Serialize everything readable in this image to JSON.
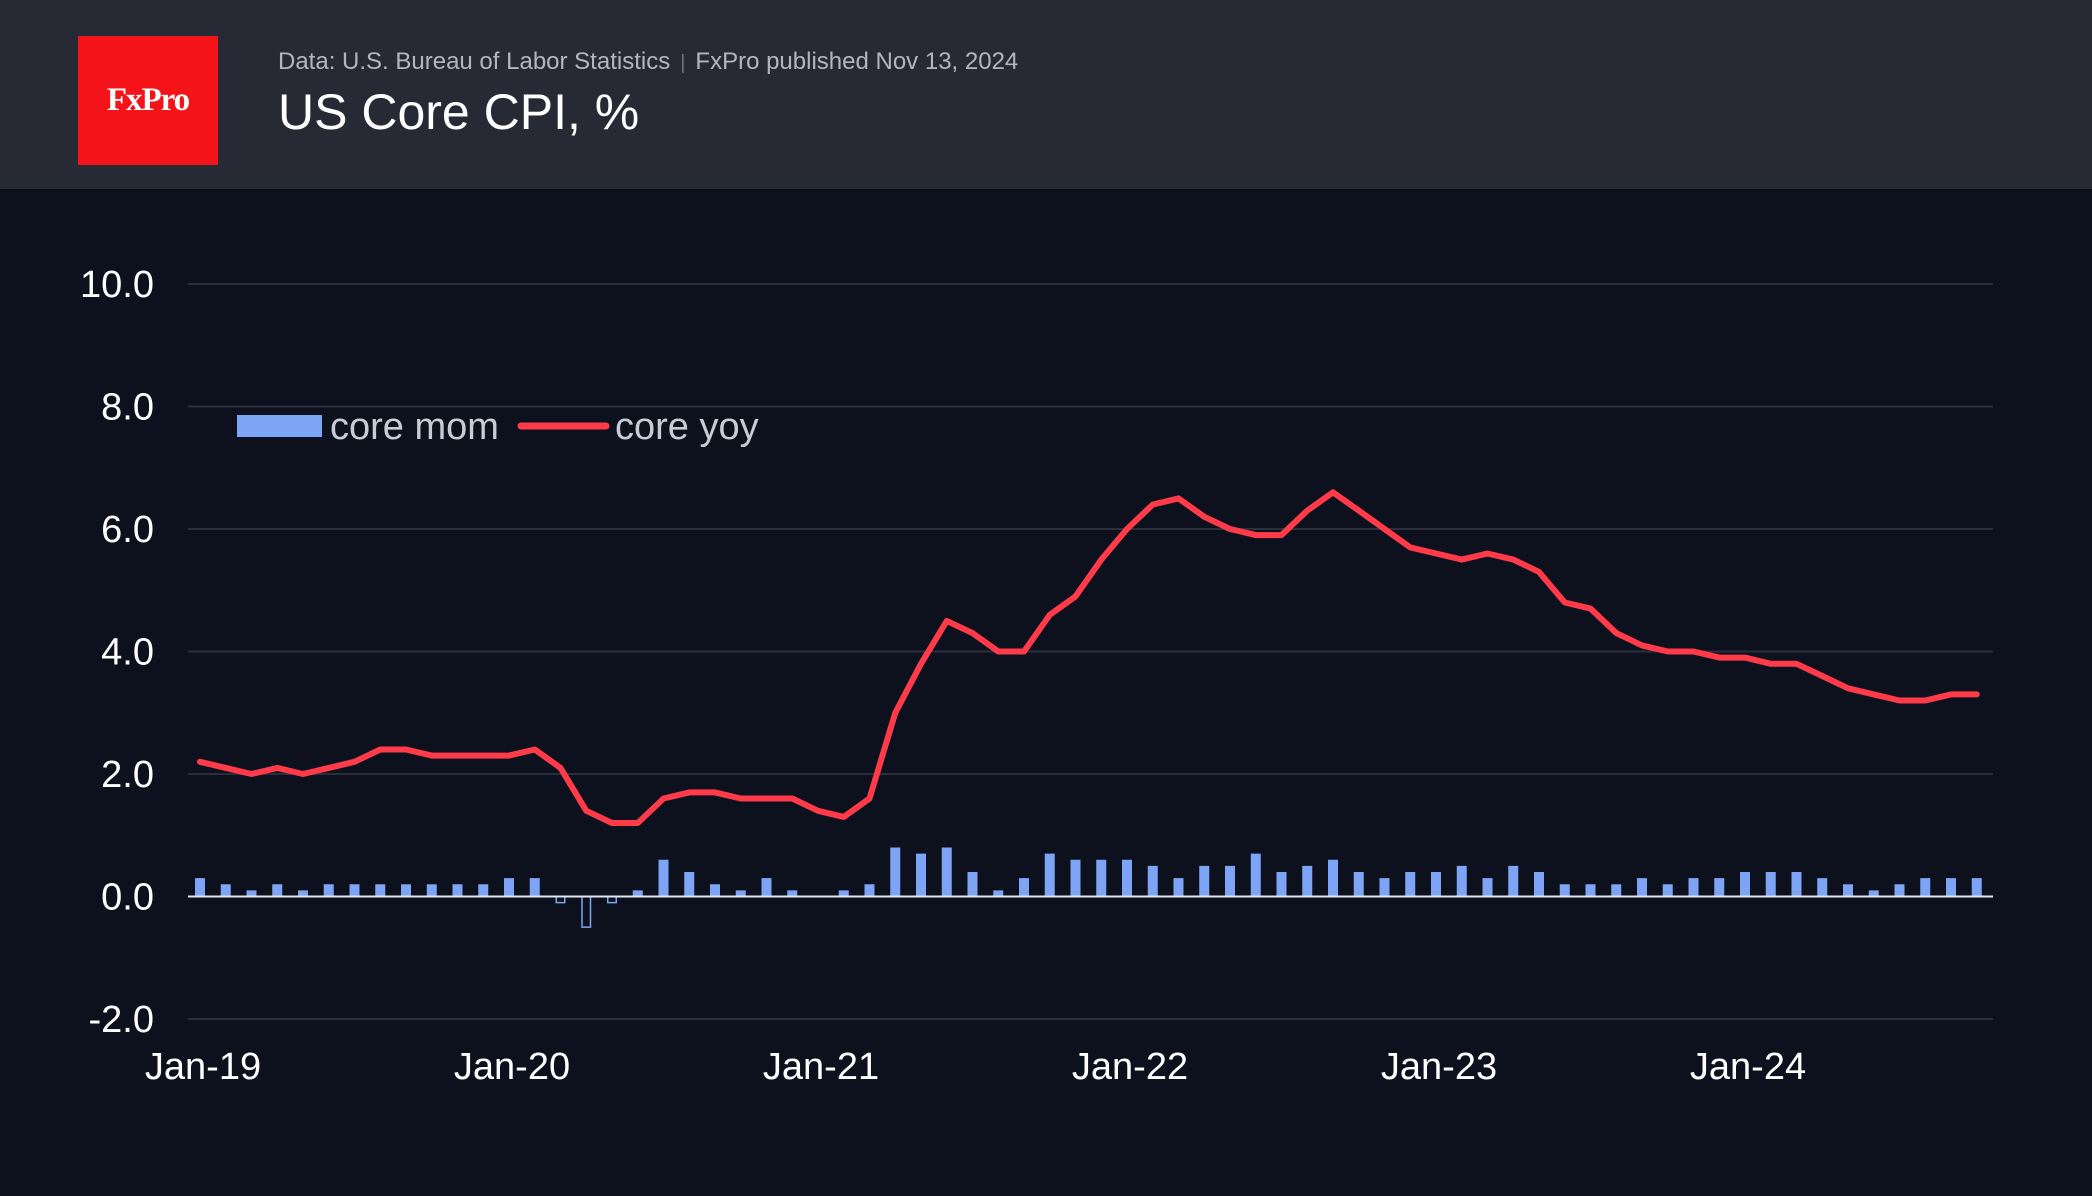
{
  "header": {
    "logo_text": "FxPro",
    "source": "Data: U.S. Bureau of Labor Statistics",
    "separator": "|",
    "published": "FxPro published Nov 13, 2024",
    "title": "US Core CPI, %"
  },
  "colors": {
    "background": "#0c111d",
    "header_bg": "#272a35",
    "logo_red": "#f5131a",
    "line": "#ff3b4a",
    "bars": "#7ea4f5",
    "grid": "#2a2f3b",
    "text": "#ffffff"
  },
  "chart_data": {
    "type": "bar+line",
    "title": "US Core CPI, %",
    "xlabel": "",
    "ylabel": "",
    "ylim": [
      -2,
      10
    ],
    "yticks": [
      "10.0",
      "8.0",
      "6.0",
      "4.0",
      "2.0",
      "0.0",
      "-2.0"
    ],
    "x_tick_labels": [
      "Jan-19",
      "Jan-20",
      "Jan-21",
      "Jan-22",
      "Jan-23",
      "Jan-24"
    ],
    "legend": {
      "position": "top-left",
      "entries": [
        {
          "name": "core mom",
          "kind": "bar"
        },
        {
          "name": "core yoy",
          "kind": "line"
        }
      ]
    },
    "start_month": "Jan-2019",
    "series": [
      {
        "name": "core mom",
        "type": "bar",
        "values": [
          0.3,
          0.2,
          0.1,
          0.2,
          0.1,
          0.2,
          0.2,
          0.2,
          0.2,
          0.2,
          0.2,
          0.2,
          0.3,
          0.3,
          -0.1,
          -0.5,
          -0.1,
          0.1,
          0.6,
          0.4,
          0.2,
          0.1,
          0.3,
          0.1,
          0.0,
          0.1,
          0.2,
          0.8,
          0.7,
          0.8,
          0.4,
          0.1,
          0.3,
          0.7,
          0.6,
          0.6,
          0.6,
          0.5,
          0.3,
          0.5,
          0.5,
          0.7,
          0.4,
          0.5,
          0.6,
          0.4,
          0.3,
          0.4,
          0.4,
          0.5,
          0.3,
          0.5,
          0.4,
          0.2,
          0.2,
          0.2,
          0.3,
          0.2,
          0.3,
          0.3,
          0.4,
          0.4,
          0.4,
          0.3,
          0.2,
          0.1,
          0.2,
          0.3,
          0.3,
          0.3
        ]
      },
      {
        "name": "core yoy",
        "type": "line",
        "values": [
          2.2,
          2.1,
          2.0,
          2.1,
          2.0,
          2.1,
          2.2,
          2.4,
          2.4,
          2.3,
          2.3,
          2.3,
          2.3,
          2.4,
          2.1,
          1.4,
          1.2,
          1.2,
          1.6,
          1.7,
          1.7,
          1.6,
          1.6,
          1.6,
          1.4,
          1.3,
          1.6,
          3.0,
          3.8,
          4.5,
          4.3,
          4.0,
          4.0,
          4.6,
          4.9,
          5.5,
          6.0,
          6.4,
          6.5,
          6.2,
          6.0,
          5.9,
          5.9,
          6.3,
          6.6,
          6.3,
          6.0,
          5.7,
          5.6,
          5.5,
          5.6,
          5.5,
          5.3,
          4.8,
          4.7,
          4.3,
          4.1,
          4.0,
          4.0,
          3.9,
          3.9,
          3.8,
          3.8,
          3.6,
          3.4,
          3.3,
          3.2,
          3.2,
          3.3,
          3.3
        ]
      }
    ]
  }
}
